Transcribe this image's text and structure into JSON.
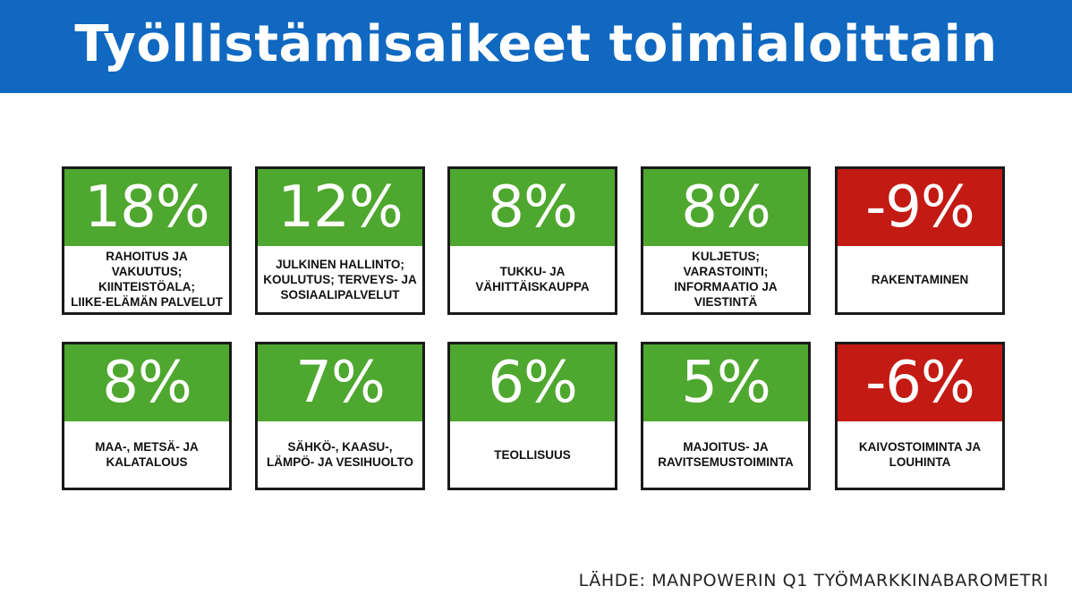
{
  "title": "Työllistämisaikeet toimialoittain",
  "source": "LÄHDE: MANPOWERIN Q1 TYÖMARKKINABAROMETRI",
  "colors": {
    "header": "#1068c0",
    "positive": "#4ea72e",
    "negative": "#c41a14"
  },
  "chart_data": {
    "type": "table",
    "title": "Työllistämisaikeet toimialoittain",
    "unit": "%",
    "categories": [
      "RAHOITUS JA VAKUUTUS; KIINTEISTÖALA; LIIKE-ELÄMÄN PALVELUT",
      "JULKINEN HALLINTO; KOULUTUS; TERVEYS- JA SOSIAALIPALVELUT",
      "TUKKU- JA VÄHITTÄISKAUPPA",
      "KULJETUS; VARASTOINTI; INFORMAATIO JA VIESTINTÄ",
      "RAKENTAMINEN",
      "MAA-, METSÄ- JA KALATALOUS",
      "SÄHKÖ-, KAASU-, LÄMPÖ- JA VESIHUOLTO",
      "TEOLLISUUS",
      "MAJOITUS- JA RAVITSEMUSTOIMINTA",
      "KAIVOSTOIMINTA JA LOUHINTA"
    ],
    "values": [
      18,
      12,
      8,
      8,
      -9,
      8,
      7,
      6,
      5,
      -6
    ],
    "cells": [
      {
        "value_label": "18%",
        "label": "RAHOITUS JA VAKUUTUS;\nKIINTEISTÖALA;\nLIIKE-ELÄMÄN PALVELUT",
        "value": 18
      },
      {
        "value_label": "12%",
        "label": "JULKINEN HALLINTO;\nKOULUTUS; TERVEYS- JA\nSOSIAALIPALVELUT",
        "value": 12
      },
      {
        "value_label": "8%",
        "label": "TUKKU- JA\nVÄHITTÄISKAUPPA",
        "value": 8
      },
      {
        "value_label": "8%",
        "label": "KULJETUS; VARASTOINTI;\nINFORMAATIO JA\nVIESTINTÄ",
        "value": 8
      },
      {
        "value_label": "-9%",
        "label": "RAKENTAMINEN",
        "value": -9
      },
      {
        "value_label": "8%",
        "label": "MAA-, METSÄ- JA\nKALATALOUS",
        "value": 8
      },
      {
        "value_label": "7%",
        "label": "SÄHKÖ-, KAASU-,\nLÄMPÖ- JA VESIHUOLTO",
        "value": 7
      },
      {
        "value_label": "6%",
        "label": "TEOLLISUUS",
        "value": 6
      },
      {
        "value_label": "5%",
        "label": "MAJOITUS- JA\nRAVITSEMUSTOIMINTA",
        "value": 5
      },
      {
        "value_label": "-6%",
        "label": "KAIVOSTOIMINTA JA\nLOUHINTA",
        "value": -6
      }
    ]
  }
}
